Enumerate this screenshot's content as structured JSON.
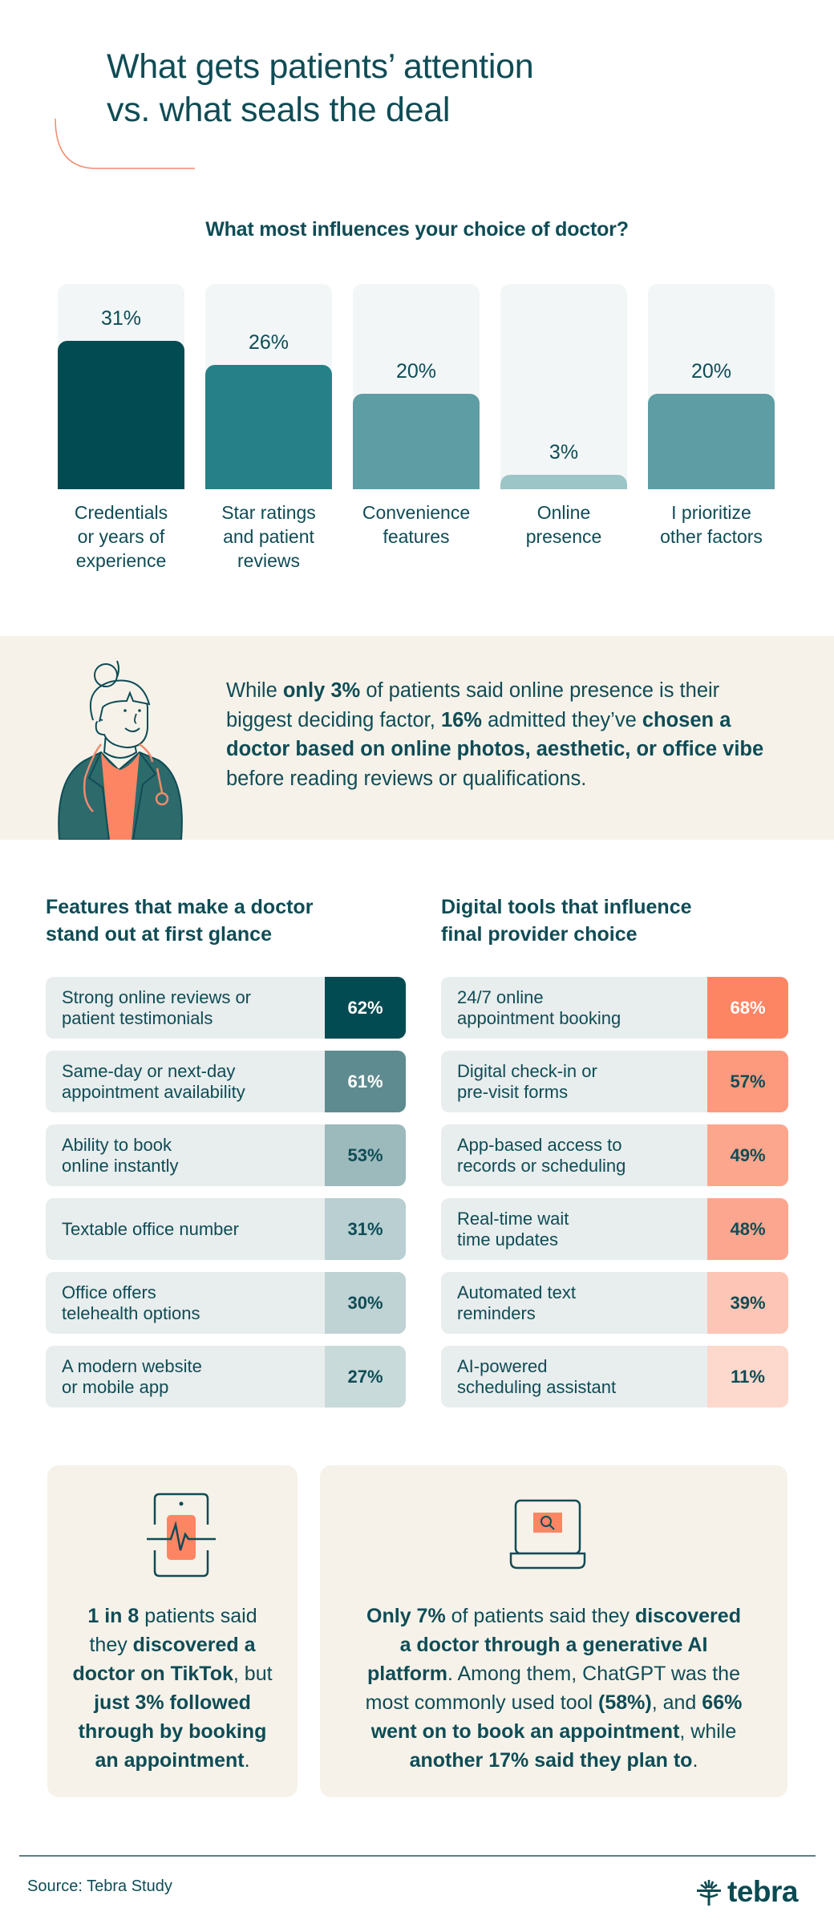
{
  "title": {
    "line1": "What gets patients’ attention",
    "line2": "vs. what seals the deal"
  },
  "chart_data": {
    "type": "bar",
    "title": "What most influences your choice of doctor?",
    "categories": [
      "Credentials or years of experience",
      "Star ratings and patient reviews",
      "Convenience features",
      "Online presence",
      "I prioritize other factors"
    ],
    "values": [
      31,
      26,
      20,
      3,
      20
    ],
    "value_labels": [
      "31%",
      "26%",
      "20%",
      "3%",
      "20%"
    ],
    "label_lines": [
      [
        "Credentials",
        "or years of",
        "experience"
      ],
      [
        "Star ratings",
        "and patient",
        "reviews"
      ],
      [
        "Convenience",
        "features"
      ],
      [
        "Online",
        "presence"
      ],
      [
        "I prioritize",
        "other factors"
      ]
    ],
    "colors": [
      "#034b52",
      "#258187",
      "#5d9da3",
      "#9cc5c7",
      "#5d9da3"
    ],
    "xlabel": "",
    "ylabel": "",
    "ylim": [
      0,
      40
    ],
    "grid": false,
    "legend": "none"
  },
  "callout": {
    "parts": [
      {
        "t": "While ",
        "b": false
      },
      {
        "t": "only 3%",
        "b": true
      },
      {
        "t": " of patients said online presence is their biggest deciding factor, ",
        "b": false
      },
      {
        "t": "16%",
        "b": true
      },
      {
        "t": " admitted they’ve ",
        "b": false
      },
      {
        "t": "chosen a doctor based on online photos, aesthetic, or office vibe",
        "b": true
      },
      {
        "t": " before reading reviews or qualifications.",
        "b": false
      }
    ]
  },
  "features": {
    "heading_line1": "Features that make a doctor",
    "heading_line2": "stand out at first glance",
    "rows": [
      {
        "label": "Strong online reviews or\npatient testimonials",
        "value": "62%",
        "bg": "#034b52",
        "fg": "#ffffff"
      },
      {
        "label": "Same-day or next-day\nappointment availability",
        "value": "61%",
        "bg": "#5e8b8f",
        "fg": "#ffffff"
      },
      {
        "label": "Ability to book\nonline instantly",
        "value": "53%",
        "bg": "#9cb9bc",
        "fg": "#0f4c55"
      },
      {
        "label": "Textable office number",
        "value": "31%",
        "bg": "#b9cfd1",
        "fg": "#0f4c55"
      },
      {
        "label": "Office offers\ntelehealth options",
        "value": "30%",
        "bg": "#bfd2d4",
        "fg": "#0f4c55"
      },
      {
        "label": "A modern website\nor mobile app",
        "value": "27%",
        "bg": "#c9dadb",
        "fg": "#0f4c55"
      }
    ]
  },
  "digital_tools": {
    "heading_line1": "Digital tools that influence",
    "heading_line2": "final provider choice",
    "rows": [
      {
        "label": "24/7 online\nappointment booking",
        "value": "68%",
        "bg": "#fe8564",
        "fg": "#ffffff"
      },
      {
        "label": "Digital check-in or\npre-visit forms",
        "value": "57%",
        "bg": "#fd9a7e",
        "fg": "#0f4c55"
      },
      {
        "label": "App-based access to\nrecords or scheduling",
        "value": "49%",
        "bg": "#fca68e",
        "fg": "#0f4c55"
      },
      {
        "label": "Real-time wait\ntime updates",
        "value": "48%",
        "bg": "#fca68f",
        "fg": "#0f4c55"
      },
      {
        "label": "Automated text\nreminders",
        "value": "39%",
        "bg": "#fdc5b5",
        "fg": "#0f4c55"
      },
      {
        "label": "AI-powered\nscheduling assistant",
        "value": "11%",
        "bg": "#fdd8cc",
        "fg": "#0f4c55"
      }
    ]
  },
  "card_tiktok": {
    "icon": "phone-heartbeat-icon",
    "parts": [
      {
        "t": "1 in 8",
        "b": true
      },
      {
        "t": " patients said they ",
        "b": false
      },
      {
        "t": "discovered a doctor on TikTok",
        "b": true
      },
      {
        "t": ", but ",
        "b": false
      },
      {
        "t": "just 3% followed through by booking an appointment",
        "b": true
      },
      {
        "t": ".",
        "b": false
      }
    ]
  },
  "card_ai": {
    "icon": "laptop-search-icon",
    "parts": [
      {
        "t": "Only 7%",
        "b": true
      },
      {
        "t": " of patients said they ",
        "b": false
      },
      {
        "t": "discovered a doctor through a generative AI platform",
        "b": true
      },
      {
        "t": ". Among them, ChatGPT was the most commonly used tool ",
        "b": false
      },
      {
        "t": "(58%)",
        "b": true
      },
      {
        "t": ", and ",
        "b": false
      },
      {
        "t": "66% went on to book an appointment",
        "b": true
      },
      {
        "t": ", while ",
        "b": false
      },
      {
        "t": "another 17% said they plan to",
        "b": true
      },
      {
        "t": ".",
        "b": false
      }
    ]
  },
  "footer": {
    "source": "Source: Tebra Study",
    "logo_text": "tebra"
  },
  "colors": {
    "primary": "#0f4c55",
    "accent": "#fe8564",
    "band_bg": "#f6f2ea",
    "row_bg": "#e8eded"
  }
}
